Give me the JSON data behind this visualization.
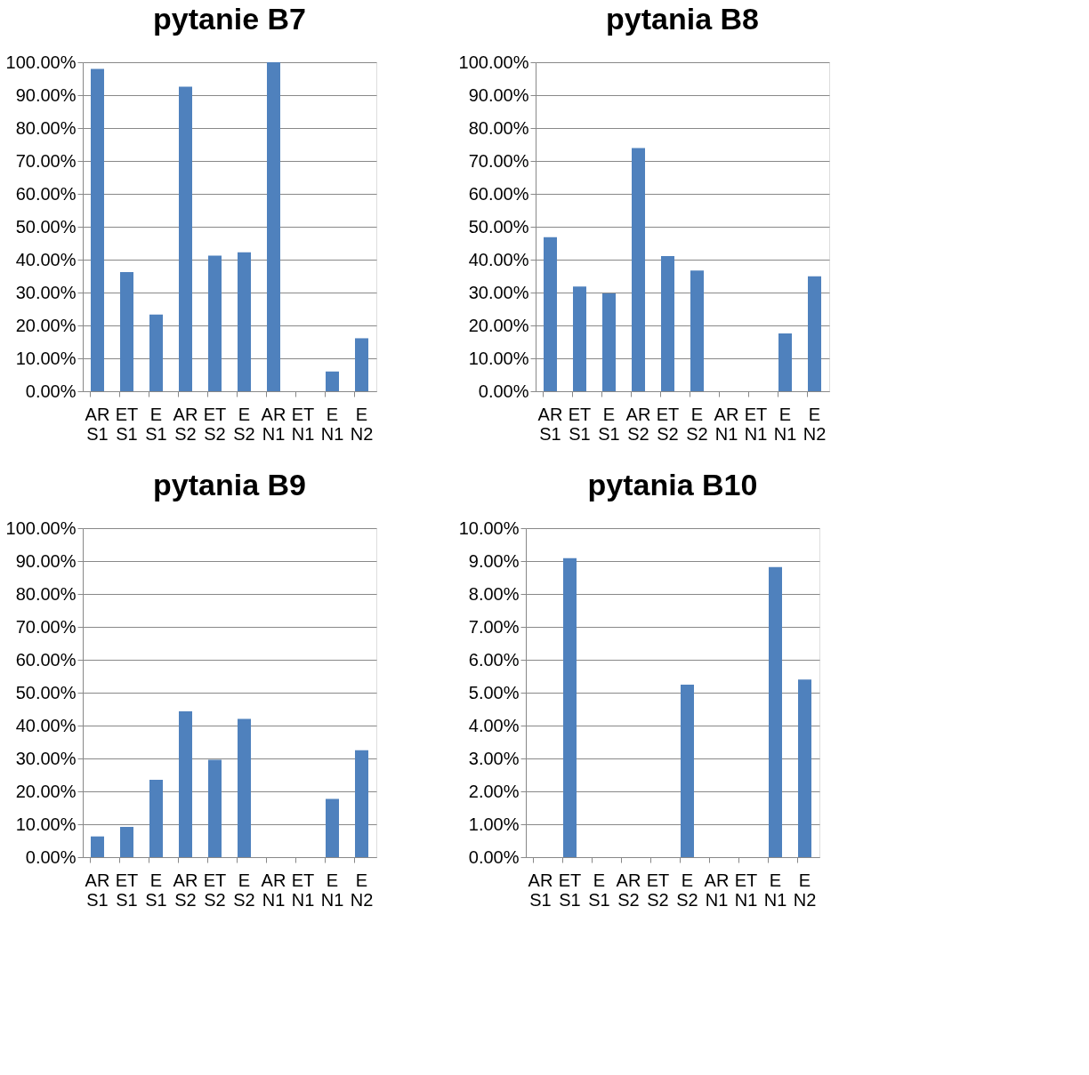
{
  "chart_data": [
    {
      "type": "bar",
      "title": "pytanie B7",
      "categories": [
        "AR S1",
        "ET S1",
        "E S1",
        "AR S2",
        "ET S2",
        "E S2",
        "AR N1",
        "ET N1",
        "E N1",
        "E N2"
      ],
      "values": [
        98.0,
        36.2,
        23.3,
        92.6,
        41.2,
        42.2,
        100.0,
        0,
        6.0,
        16.1
      ],
      "color": "#4f81bd",
      "ylim": [
        0,
        100
      ],
      "yticks": [
        {
          "value": 0,
          "label": "0.00%"
        },
        {
          "value": 10,
          "label": "10.00%"
        },
        {
          "value": 20,
          "label": "20.00%"
        },
        {
          "value": 30,
          "label": "30.00%"
        },
        {
          "value": 40,
          "label": "40.00%"
        },
        {
          "value": 50,
          "label": "50.00%"
        },
        {
          "value": 60,
          "label": "60.00%"
        },
        {
          "value": 70,
          "label": "70.00%"
        },
        {
          "value": 80,
          "label": "80.00%"
        },
        {
          "value": 90,
          "label": "90.00%"
        },
        {
          "value": 100,
          "label": "100.00%"
        }
      ],
      "grid": "y"
    },
    {
      "type": "bar",
      "title": "pytania B8",
      "categories": [
        "AR S1",
        "ET S1",
        "E S1",
        "AR S2",
        "ET S2",
        "E S2",
        "AR N1",
        "ET N1",
        "E N1",
        "E N2"
      ],
      "values": [
        46.8,
        31.8,
        29.7,
        73.9,
        41.1,
        36.7,
        0,
        0,
        17.6,
        34.9
      ],
      "color": "#4f81bd",
      "ylim": [
        0,
        100
      ],
      "yticks": [
        {
          "value": 0,
          "label": "0.00%"
        },
        {
          "value": 10,
          "label": "10.00%"
        },
        {
          "value": 20,
          "label": "20.00%"
        },
        {
          "value": 30,
          "label": "30.00%"
        },
        {
          "value": 40,
          "label": "40.00%"
        },
        {
          "value": 50,
          "label": "50.00%"
        },
        {
          "value": 60,
          "label": "60.00%"
        },
        {
          "value": 70,
          "label": "70.00%"
        },
        {
          "value": 80,
          "label": "80.00%"
        },
        {
          "value": 90,
          "label": "90.00%"
        },
        {
          "value": 100,
          "label": "100.00%"
        }
      ],
      "grid": "y"
    },
    {
      "type": "bar",
      "title": "pytania B9",
      "categories": [
        "AR S1",
        "ET S1",
        "E S1",
        "AR S2",
        "ET S2",
        "E S2",
        "AR N1",
        "ET N1",
        "E N1",
        "E N2"
      ],
      "values": [
        6.3,
        9.2,
        23.5,
        44.3,
        29.6,
        42.0,
        0,
        0,
        17.7,
        32.5
      ],
      "color": "#4f81bd",
      "ylim": [
        0,
        100
      ],
      "yticks": [
        {
          "value": 0,
          "label": "0.00%"
        },
        {
          "value": 10,
          "label": "10.00%"
        },
        {
          "value": 20,
          "label": "20.00%"
        },
        {
          "value": 30,
          "label": "30.00%"
        },
        {
          "value": 40,
          "label": "40.00%"
        },
        {
          "value": 50,
          "label": "50.00%"
        },
        {
          "value": 60,
          "label": "60.00%"
        },
        {
          "value": 70,
          "label": "70.00%"
        },
        {
          "value": 80,
          "label": "80.00%"
        },
        {
          "value": 90,
          "label": "90.00%"
        },
        {
          "value": 100,
          "label": "100.00%"
        }
      ],
      "grid": "y"
    },
    {
      "type": "bar",
      "title": "pytania B10",
      "categories": [
        "AR S1",
        "ET S1",
        "E S1",
        "AR S2",
        "ET S2",
        "E S2",
        "AR N1",
        "ET N1",
        "E N1",
        "E N2"
      ],
      "values": [
        0,
        9.09,
        0,
        0,
        0,
        5.24,
        0,
        0,
        8.82,
        5.4
      ],
      "color": "#4f81bd",
      "ylim": [
        0,
        10
      ],
      "yticks": [
        {
          "value": 0,
          "label": "0.00%"
        },
        {
          "value": 1,
          "label": "1.00%"
        },
        {
          "value": 2,
          "label": "2.00%"
        },
        {
          "value": 3,
          "label": "3.00%"
        },
        {
          "value": 4,
          "label": "4.00%"
        },
        {
          "value": 5,
          "label": "5.00%"
        },
        {
          "value": 6,
          "label": "6.00%"
        },
        {
          "value": 7,
          "label": "7.00%"
        },
        {
          "value": 8,
          "label": "8.00%"
        },
        {
          "value": 9,
          "label": "9.00%"
        },
        {
          "value": 10,
          "label": "10.00%"
        }
      ],
      "grid": "y"
    }
  ]
}
